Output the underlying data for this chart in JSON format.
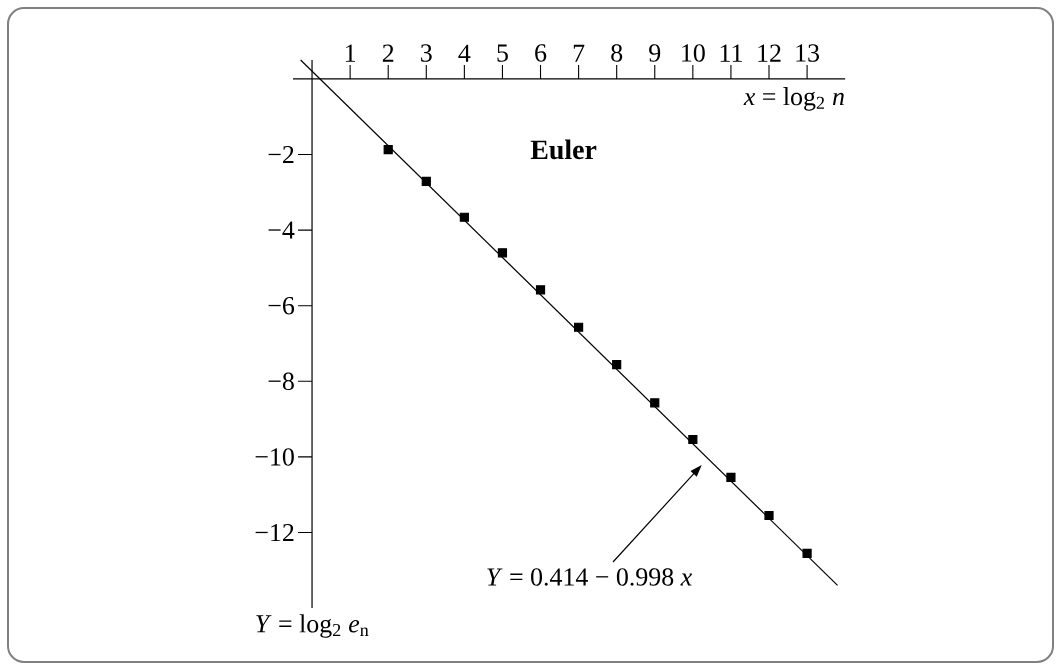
{
  "chart_data": {
    "type": "scatter",
    "title": "Euler",
    "xlabel": "*x* = log$_{2}$ *n*",
    "ylabel": "*Y* = log$_{2}$ *e*$_{n}$",
    "x": [
      2,
      3,
      4,
      5,
      6,
      7,
      8,
      9,
      10,
      11,
      12,
      13
    ],
    "series": [
      {
        "type": "scatter",
        "color": "#000000",
        "values": [
          -1.87,
          -2.71,
          -3.66,
          -4.6,
          -5.58,
          -6.57,
          -7.56,
          -8.57,
          -9.54,
          -10.54,
          -11.55,
          -12.55
        ]
      },
      {
        "type": "line",
        "color": "#000000",
        "marker": "none",
        "x": [
          -0.3,
          13.8
        ],
        "values": [
          0.5,
          -13.4
        ]
      }
    ],
    "marker": "square",
    "xlim": [
      -0.5,
      14
    ],
    "ylim": [
      -14,
      0.5
    ],
    "xticks": [
      1,
      2,
      3,
      4,
      5,
      6,
      7,
      8,
      9,
      10,
      11,
      12,
      13
    ],
    "yticks": [
      {
        "value": -2,
        "label": "−2"
      },
      {
        "value": -4,
        "label": "−4"
      },
      {
        "value": -6,
        "label": "−6"
      },
      {
        "value": -8,
        "label": "−8"
      },
      {
        "value": -10,
        "label": "−10"
      },
      {
        "value": -12,
        "label": "−12"
      }
    ],
    "annotations": [
      "*Y* = 0.414 − 0.998 *x*"
    ]
  }
}
